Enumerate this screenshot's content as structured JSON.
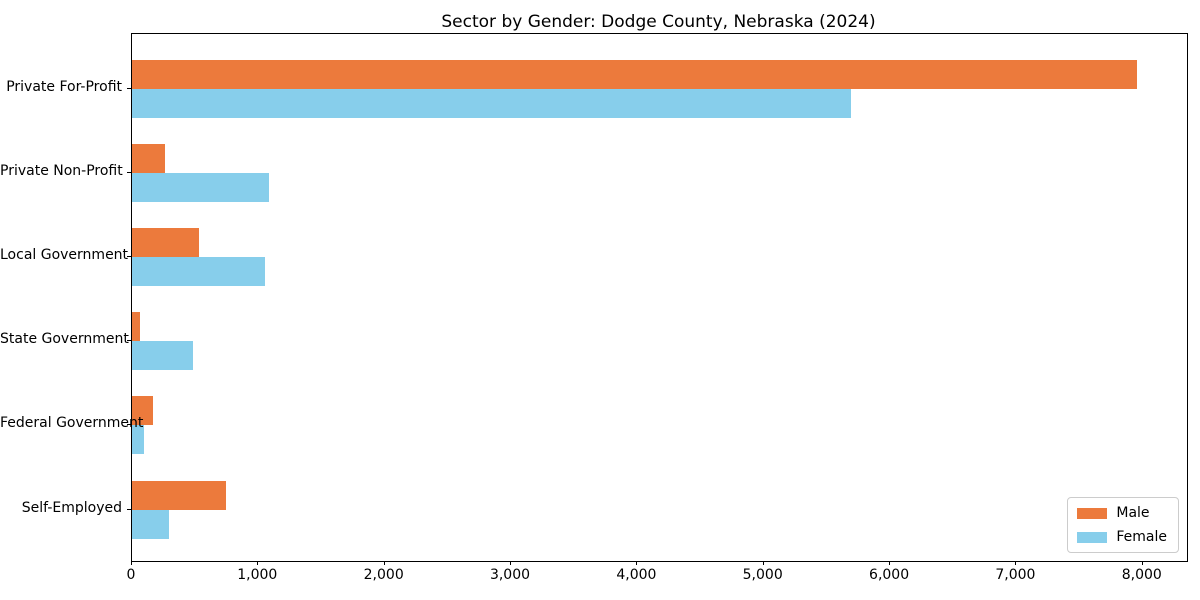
{
  "chart_data": {
    "type": "bar",
    "orientation": "horizontal",
    "title": "Sector by Gender: Dodge County, Nebraska (2024)",
    "categories": [
      "Private For-Profit",
      "Private Non-Profit",
      "Local Government",
      "State Government",
      "Federal Government",
      "Self-Employed"
    ],
    "series": [
      {
        "name": "Male",
        "color": "#ec7a3c",
        "values": [
          7950,
          260,
          530,
          60,
          165,
          740
        ]
      },
      {
        "name": "Female",
        "color": "#87ceeb",
        "values": [
          5690,
          1080,
          1050,
          480,
          95,
          290
        ]
      }
    ],
    "xlabel": "",
    "ylabel": "",
    "xlim": [
      0,
      8350
    ],
    "xticks": {
      "values": [
        0,
        1000,
        2000,
        3000,
        4000,
        5000,
        6000,
        7000,
        8000
      ],
      "labels": [
        "0",
        "1,000",
        "2,000",
        "3,000",
        "4,000",
        "5,000",
        "6,000",
        "7,000",
        "8,000"
      ]
    },
    "legend": {
      "position": "lower right"
    },
    "grid": false,
    "axis_color": "#000000",
    "text_color": "#000000"
  }
}
